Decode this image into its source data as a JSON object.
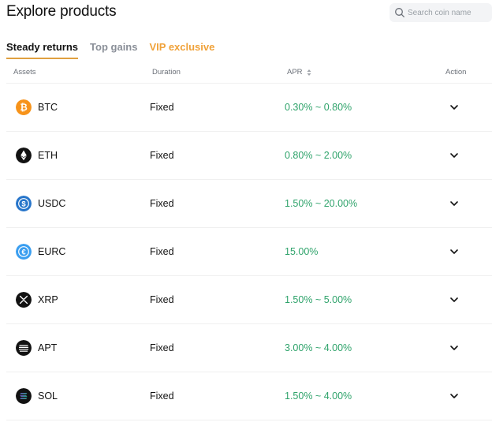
{
  "header": {
    "title": "Explore products",
    "search": {
      "placeholder": "Search coin name",
      "icon": "search-icon"
    }
  },
  "tabs": [
    {
      "label": "Steady returns",
      "active": true
    },
    {
      "label": "Top gains",
      "active": false
    },
    {
      "label": "VIP exclusive",
      "active": false,
      "color": "#f0a23a"
    }
  ],
  "table": {
    "columns": {
      "assets": "Assets",
      "duration": "Duration",
      "apr": "APR",
      "action": "Action"
    },
    "rows": [
      {
        "asset": "BTC",
        "duration": "Fixed",
        "apr": "0.30% ~ 0.80%",
        "icon": "btc-icon",
        "color": "#f7931a"
      },
      {
        "asset": "ETH",
        "duration": "Fixed",
        "apr": "0.80% ~ 2.00%",
        "icon": "eth-icon",
        "color": "#121212"
      },
      {
        "asset": "USDC",
        "duration": "Fixed",
        "apr": "1.50% ~ 20.00%",
        "icon": "usdc-icon",
        "color": "#2775ca"
      },
      {
        "asset": "EURC",
        "duration": "Fixed",
        "apr": "15.00%",
        "icon": "eurc-icon",
        "color": "#3a9ef0"
      },
      {
        "asset": "XRP",
        "duration": "Fixed",
        "apr": "1.50% ~ 5.00%",
        "icon": "xrp-icon",
        "color": "#121212"
      },
      {
        "asset": "APT",
        "duration": "Fixed",
        "apr": "3.00% ~ 4.00%",
        "icon": "apt-icon",
        "color": "#121212"
      },
      {
        "asset": "SOL",
        "duration": "Fixed",
        "apr": "1.50% ~ 4.00%",
        "icon": "sol-icon",
        "color": "#121212"
      }
    ]
  },
  "colors": {
    "apr_green": "#2fa36b",
    "tab_underline": "#e0a040",
    "vip": "#f0a23a"
  }
}
